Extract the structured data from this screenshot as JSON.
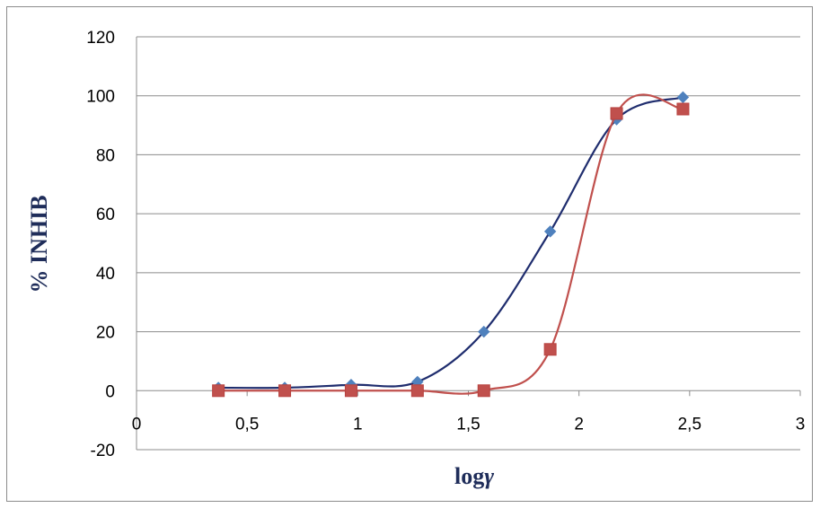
{
  "chart_data": {
    "type": "line",
    "title": "",
    "xlabel": "log",
    "xlabel_symbol": "γ",
    "ylabel": "% INHIB",
    "xlim": [
      0,
      3
    ],
    "ylim": [
      -20,
      120
    ],
    "x_ticks": [
      "0",
      "0,5",
      "1",
      "1,5",
      "2",
      "2,5",
      "3"
    ],
    "y_ticks": [
      "-20",
      "0",
      "20",
      "40",
      "60",
      "80",
      "100",
      "120"
    ],
    "grid": true,
    "legend": "none",
    "series": [
      {
        "color": "#1f2d6e",
        "marker": "diamond",
        "marker_color": "#4f81bd",
        "x": [
          0.37,
          0.67,
          0.97,
          1.27,
          1.57,
          1.87,
          2.17,
          2.47
        ],
        "y": [
          1,
          1,
          2,
          3,
          20,
          54,
          92,
          99.5
        ]
      },
      {
        "color": "#c0504d",
        "marker": "square",
        "marker_color": "#c0504d",
        "x": [
          0.37,
          0.67,
          0.97,
          1.27,
          1.57,
          1.87,
          2.17,
          2.47
        ],
        "y": [
          0,
          0,
          0,
          0,
          0,
          14,
          94,
          95.5
        ]
      }
    ]
  }
}
